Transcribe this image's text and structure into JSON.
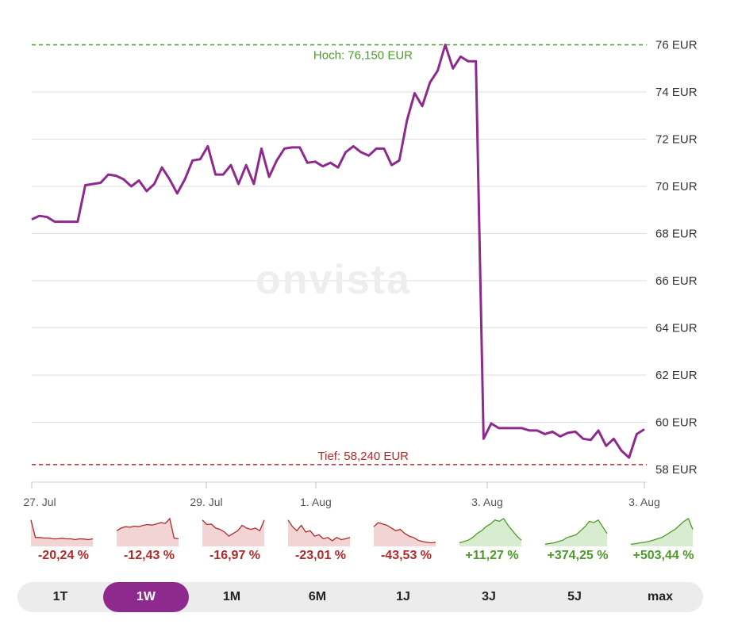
{
  "chart_data": {
    "type": "line",
    "ylim": [
      58,
      76
    ],
    "y_ticks": [
      "76 EUR",
      "74 EUR",
      "72 EUR",
      "70 EUR",
      "68 EUR",
      "66 EUR",
      "64 EUR",
      "62 EUR",
      "60 EUR",
      "58 EUR"
    ],
    "x_ticks": [
      "27. Jul",
      "29. Jul",
      "1. Aug",
      "3. Aug",
      "3. Aug"
    ],
    "watermark": "onvista",
    "high": {
      "label": "Hoch: 76,150 EUR",
      "value": 76.15,
      "color": "#4c9a2a"
    },
    "low": {
      "label": "Tief: 58,240 EUR",
      "value": 58.24,
      "color": "#b02a2a"
    },
    "line_color": "#8e2a8e",
    "grid": true,
    "values": [
      68.6,
      68.75,
      68.7,
      68.5,
      68.5,
      68.5,
      68.5,
      70.05,
      70.1,
      70.15,
      70.5,
      70.45,
      70.3,
      70.0,
      70.25,
      69.8,
      70.1,
      70.8,
      70.3,
      69.7,
      70.3,
      71.1,
      71.15,
      71.7,
      70.5,
      70.5,
      70.9,
      70.1,
      70.9,
      70.1,
      71.6,
      70.4,
      71.1,
      71.6,
      71.65,
      71.65,
      71.0,
      71.05,
      70.85,
      71.0,
      70.8,
      71.45,
      71.7,
      71.45,
      71.3,
      71.6,
      71.6,
      70.9,
      71.1,
      72.8,
      73.95,
      73.4,
      74.4,
      74.9,
      76.0,
      75.0,
      75.5,
      75.3,
      75.3,
      59.3,
      59.95,
      59.75,
      59.75,
      59.75,
      59.75,
      59.65,
      59.65,
      59.5,
      59.6,
      59.4,
      59.55,
      59.6,
      59.3,
      59.25,
      59.65,
      59.0,
      59.3,
      58.8,
      58.5,
      59.5,
      59.7
    ]
  },
  "periods": [
    {
      "pct": "-20,24 %",
      "trend": "down",
      "points": [
        0.95,
        0.3,
        0.3,
        0.28,
        0.28,
        0.25,
        0.25,
        0.27,
        0.25,
        0.25,
        0.22,
        0.25,
        0.24,
        0.22,
        0.25
      ]
    },
    {
      "pct": "-12,43 %",
      "trend": "down",
      "points": [
        0.55,
        0.65,
        0.7,
        0.68,
        0.72,
        0.7,
        0.75,
        0.78,
        0.76,
        0.8,
        0.85,
        0.82,
        1.0,
        0.28,
        0.25
      ]
    },
    {
      "pct": "-16,97 %",
      "trend": "down",
      "points": [
        0.95,
        0.78,
        0.8,
        0.65,
        0.6,
        0.5,
        0.35,
        0.45,
        0.55,
        0.75,
        0.65,
        0.6,
        0.65,
        0.55,
        0.95
      ]
    },
    {
      "pct": "-23,01 %",
      "trend": "down",
      "points": [
        0.95,
        0.7,
        0.55,
        0.75,
        0.5,
        0.55,
        0.35,
        0.4,
        0.25,
        0.3,
        0.18,
        0.3,
        0.22,
        0.25,
        0.3
      ]
    },
    {
      "pct": "-43,53 %",
      "trend": "down",
      "points": [
        0.7,
        0.85,
        0.8,
        0.75,
        0.65,
        0.55,
        0.6,
        0.45,
        0.35,
        0.3,
        0.2,
        0.15,
        0.12,
        0.1,
        0.12
      ]
    },
    {
      "pct": "+11,27 %",
      "trend": "up",
      "points": [
        0.1,
        0.15,
        0.2,
        0.3,
        0.45,
        0.55,
        0.7,
        0.8,
        0.95,
        0.9,
        1.0,
        0.75,
        0.55,
        0.35,
        0.2
      ]
    },
    {
      "pct": "+374,25 %",
      "trend": "up",
      "points": [
        0.05,
        0.08,
        0.1,
        0.15,
        0.2,
        0.3,
        0.35,
        0.4,
        0.55,
        0.7,
        0.9,
        0.85,
        0.95,
        0.7,
        0.45
      ]
    },
    {
      "pct": "+503,44 %",
      "trend": "up",
      "points": [
        0.05,
        0.07,
        0.1,
        0.12,
        0.15,
        0.2,
        0.25,
        0.3,
        0.4,
        0.5,
        0.6,
        0.75,
        0.9,
        1.0,
        0.6
      ]
    }
  ],
  "colors": {
    "down": "#b02a2a",
    "down_fill": "#f3d4d4",
    "up": "#4c9a2a",
    "up_fill": "#d8eccf",
    "active": "#8e2a8e"
  },
  "ranges": [
    "1T",
    "1W",
    "1M",
    "6M",
    "1J",
    "3J",
    "5J",
    "max"
  ],
  "active_range": "1W"
}
